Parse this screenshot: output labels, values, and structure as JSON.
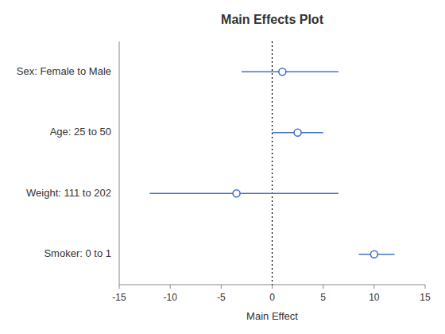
{
  "chart_data": {
    "type": "forest",
    "title": "Main Effects Plot",
    "xlabel": "Main Effect",
    "categories": [
      "Sex: Female to Male",
      "Age: 25 to 50",
      "Weight: 111 to 202",
      "Smoker: 0 to 1"
    ],
    "values": [
      1.0,
      2.5,
      -3.5,
      10.0
    ],
    "lower": [
      -3.0,
      0.0,
      -12.0,
      8.5
    ],
    "upper": [
      6.5,
      5.0,
      6.5,
      12.0
    ],
    "xlim": [
      -15,
      15
    ],
    "xticks": [
      -15,
      -10,
      -5,
      0,
      5,
      10,
      15
    ],
    "reference_x": 0,
    "color": "#4472C4",
    "grid": false
  }
}
